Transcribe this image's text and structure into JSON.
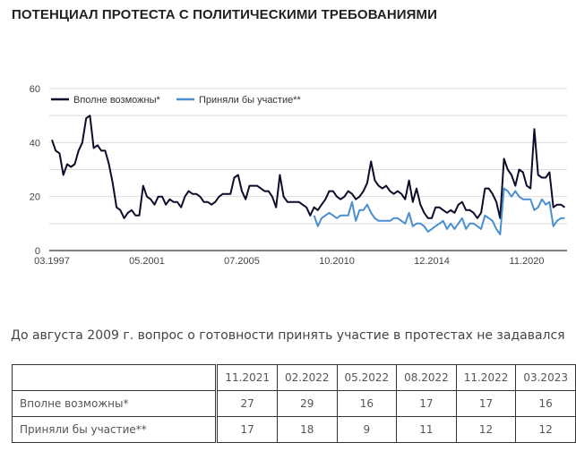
{
  "title": "ПОТЕНЦИАЛ ПРОТЕСТА С ПОЛИТИЧЕСКИМИ ТРЕБОВАНИЯМИ",
  "note": "До августа 2009 г. вопрос о готовности принять участие в протестах не задавался",
  "chart_data": {
    "type": "line",
    "ylim": [
      0,
      60
    ],
    "y_ticks": [
      0,
      20,
      40,
      60
    ],
    "grid": true,
    "legend_placement": "top-left",
    "x_tick_labels": [
      {
        "index": 0,
        "label": "03.1997"
      },
      {
        "index": 25,
        "label": "05.2001"
      },
      {
        "index": 50,
        "label": "07.2005"
      },
      {
        "index": 75,
        "label": "10.2010"
      },
      {
        "index": 100,
        "label": "12.2014"
      },
      {
        "index": 125,
        "label": "11.2020"
      }
    ],
    "series": [
      {
        "name": "Вполне возможны*",
        "color": "#0d0d2b",
        "values": [
          41,
          37,
          36,
          28,
          32,
          31,
          32,
          37,
          40,
          49,
          50,
          38,
          39,
          37,
          37,
          32,
          25,
          16,
          15,
          12,
          14,
          15,
          13,
          13,
          24,
          20,
          19,
          17,
          20,
          20,
          17,
          19,
          18,
          18,
          16,
          20,
          22,
          21,
          21,
          20,
          18,
          18,
          17,
          18,
          20,
          21,
          21,
          21,
          27,
          28,
          22,
          19,
          24,
          24,
          24,
          23,
          22,
          22,
          20,
          16,
          28,
          20,
          18,
          18,
          18,
          18,
          17,
          16,
          13,
          16,
          15,
          17,
          19,
          22,
          22,
          20,
          19,
          20,
          22,
          21,
          19,
          20,
          22,
          25,
          33,
          26,
          24,
          23,
          24,
          22,
          21,
          22,
          21,
          19,
          26,
          18,
          23,
          17,
          14,
          12,
          12,
          16,
          16,
          15,
          14,
          15,
          14,
          17,
          18,
          15,
          15,
          14,
          12,
          14,
          23,
          23,
          21,
          18,
          12,
          34,
          30,
          28,
          24,
          30,
          29,
          24,
          23,
          45,
          28,
          27,
          27,
          29,
          16,
          17,
          17,
          16
        ]
      },
      {
        "name": "Приняли бы участие**",
        "color": "#4a8fcf",
        "start_index": 69,
        "values": [
          13,
          9,
          12,
          13,
          14,
          13,
          12,
          13,
          13,
          13,
          18,
          11,
          15,
          15,
          17,
          14,
          12,
          11,
          11,
          11,
          11,
          12,
          12,
          11,
          10,
          14,
          9,
          10,
          10,
          9,
          7,
          8,
          9,
          10,
          11,
          8,
          10,
          8,
          10,
          12,
          8,
          10,
          10,
          9,
          8,
          13,
          12,
          11,
          8,
          6,
          23,
          22,
          20,
          22,
          20,
          19,
          19,
          19,
          15,
          16,
          19,
          17,
          18,
          9,
          11,
          12,
          12
        ]
      }
    ]
  },
  "table": {
    "headers": [
      "11.2021",
      "02.2022",
      "05.2022",
      "08.2022",
      "11.2022",
      "03.2023"
    ],
    "rows": [
      {
        "label": "Вполне возможны*",
        "values": [
          "27",
          "29",
          "16",
          "17",
          "17",
          "16"
        ]
      },
      {
        "label": "Приняли бы участие**",
        "values": [
          "17",
          "18",
          "9",
          "11",
          "12",
          "12"
        ]
      }
    ]
  }
}
